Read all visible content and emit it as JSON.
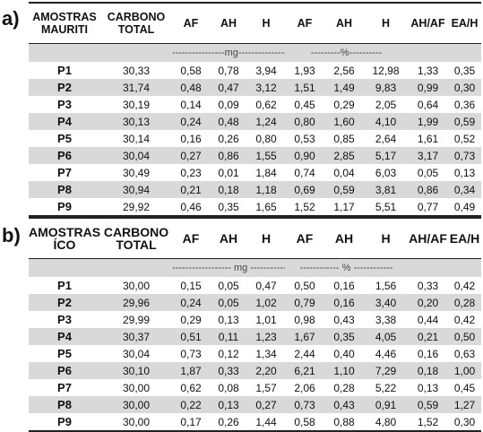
{
  "tables": [
    {
      "label": "a)",
      "header": [
        "AMOSTRAS MAURITI",
        "CARBONO TOTAL",
        "AF",
        "AH",
        "H",
        "AF",
        "AH",
        "H",
        "AH/AF",
        "EA/H"
      ],
      "units": [
        "----------------mg-----------------",
        "---------%----------"
      ],
      "rows": [
        [
          "P1",
          "30,33",
          "0,58",
          "0,78",
          "3,94",
          "1,93",
          "2,56",
          "12,98",
          "1,33",
          "0,35"
        ],
        [
          "P2",
          "31,74",
          "0,48",
          "0,47",
          "3,12",
          "1,51",
          "1,49",
          "9,83",
          "0,99",
          "0,30"
        ],
        [
          "P3",
          "30,19",
          "0,14",
          "0,09",
          "0,62",
          "0,45",
          "0,29",
          "2,05",
          "0,64",
          "0,36"
        ],
        [
          "P4",
          "30,13",
          "0,24",
          "0,48",
          "1,24",
          "0,80",
          "1,60",
          "4,10",
          "1,99",
          "0,59"
        ],
        [
          "P5",
          "30,14",
          "0,16",
          "0,26",
          "0,80",
          "0,53",
          "0,85",
          "2,64",
          "1,61",
          "0,52"
        ],
        [
          "P6",
          "30,04",
          "0,27",
          "0,86",
          "1,55",
          "0,90",
          "2,85",
          "5,17",
          "3,17",
          "0,73"
        ],
        [
          "P7",
          "30,49",
          "0,23",
          "0,01",
          "1,84",
          "0,74",
          "0,04",
          "6,03",
          "0,05",
          "0,13"
        ],
        [
          "P8",
          "30,94",
          "0,21",
          "0,18",
          "1,18",
          "0,69",
          "0,59",
          "3,81",
          "0,86",
          "0,34"
        ],
        [
          "P9",
          "29,92",
          "0,46",
          "0,35",
          "1,65",
          "1,52",
          "1,17",
          "5,51",
          "0,77",
          "0,49"
        ]
      ]
    },
    {
      "label": "b)",
      "header": [
        "AMOSTRAS ÍCO",
        "CARBONO TOTAL",
        "AF",
        "AH",
        "H",
        "AF",
        "AH",
        "H",
        "AH/AF",
        "EA/H"
      ],
      "units": [
        "------------------ mg ------------------",
        "------------ % ------------"
      ],
      "rows": [
        [
          "P1",
          "30,00",
          "0,15",
          "0,05",
          "0,47",
          "0,50",
          "0,16",
          "1,56",
          "0,33",
          "0,42"
        ],
        [
          "P2",
          "29,96",
          "0,24",
          "0,05",
          "1,02",
          "0,79",
          "0,16",
          "3,40",
          "0,20",
          "0,28"
        ],
        [
          "P3",
          "29,99",
          "0,29",
          "0,13",
          "1,01",
          "0,98",
          "0,43",
          "3,38",
          "0,44",
          "0,42"
        ],
        [
          "P4",
          "30,37",
          "0,51",
          "0,11",
          "1,23",
          "1,67",
          "0,35",
          "4,05",
          "0,21",
          "0,50"
        ],
        [
          "P5",
          "30,04",
          "0,73",
          "0,12",
          "1,34",
          "2,44",
          "0,40",
          "4,46",
          "0,16",
          "0,63"
        ],
        [
          "P6",
          "30,10",
          "1,87",
          "0,33",
          "2,20",
          "6,21",
          "1,10",
          "7,29",
          "0,18",
          "1,00"
        ],
        [
          "P7",
          "30,00",
          "0,62",
          "0,08",
          "1,57",
          "2,06",
          "0,28",
          "5,22",
          "0,13",
          "0,45"
        ],
        [
          "P8",
          "30,00",
          "0,22",
          "0,13",
          "0,27",
          "0,73",
          "0,43",
          "0,91",
          "0,59",
          "1,27"
        ],
        [
          "P9",
          "30,00",
          "0,17",
          "0,26",
          "1,44",
          "0,58",
          "0,88",
          "4,80",
          "1,52",
          "0,30"
        ]
      ]
    }
  ]
}
